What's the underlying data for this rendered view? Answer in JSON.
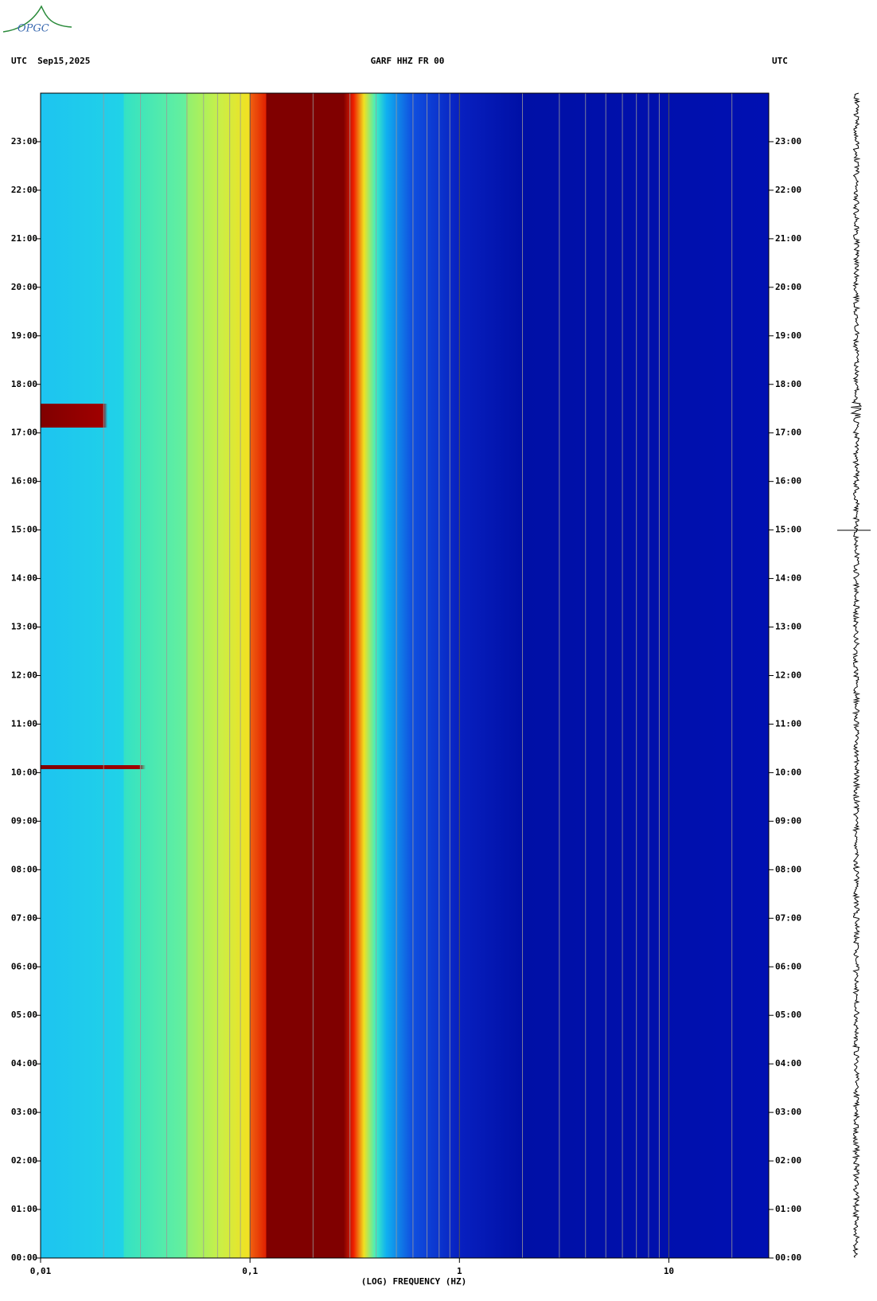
{
  "header": {
    "logo": "OPGC",
    "left": "UTC  Sep15,2025",
    "center": "GARF HHZ FR 00",
    "right": "UTC"
  },
  "chart_data": {
    "type": "spectrogram",
    "x_label": "(LOG) FREQUENCY (HZ)",
    "x_log": true,
    "xlim": [
      0.01,
      30
    ],
    "xticks": [
      {
        "value": 0.01,
        "label": "0,01"
      },
      {
        "value": 0.1,
        "label": "0,1"
      },
      1,
      10
    ],
    "x_minor_ticks": [
      0.02,
      0.03,
      0.04,
      0.05,
      0.06,
      0.07,
      0.08,
      0.09,
      0.2,
      0.3,
      0.4,
      0.5,
      0.6,
      0.7,
      0.8,
      0.9,
      2,
      3,
      4,
      5,
      6,
      7,
      8,
      9,
      20
    ],
    "ylim": [
      0,
      24
    ],
    "yticks": [
      {
        "value": 0,
        "label": "00:00"
      },
      {
        "value": 1,
        "label": "01:00"
      },
      {
        "value": 2,
        "label": "02:00"
      },
      {
        "value": 3,
        "label": "03:00"
      },
      {
        "value": 4,
        "label": "04:00"
      },
      {
        "value": 5,
        "label": "05:00"
      },
      {
        "value": 6,
        "label": "06:00"
      },
      {
        "value": 7,
        "label": "07:00"
      },
      {
        "value": 8,
        "label": "08:00"
      },
      {
        "value": 9,
        "label": "09:00"
      },
      {
        "value": 10,
        "label": "10:00"
      },
      {
        "value": 11,
        "label": "11:00"
      },
      {
        "value": 12,
        "label": "12:00"
      },
      {
        "value": 13,
        "label": "13:00"
      },
      {
        "value": 14,
        "label": "14:00"
      },
      {
        "value": 15,
        "label": "15:00"
      },
      {
        "value": 16,
        "label": "16:00"
      },
      {
        "value": 17,
        "label": "17:00"
      },
      {
        "value": 18,
        "label": "18:00"
      },
      {
        "value": 19,
        "label": "19:00"
      },
      {
        "value": 20,
        "label": "20:00"
      },
      {
        "value": 21,
        "label": "21:00"
      },
      {
        "value": 22,
        "label": "22:00"
      },
      {
        "value": 23,
        "label": "23:00"
      }
    ],
    "grid": true
  }
}
